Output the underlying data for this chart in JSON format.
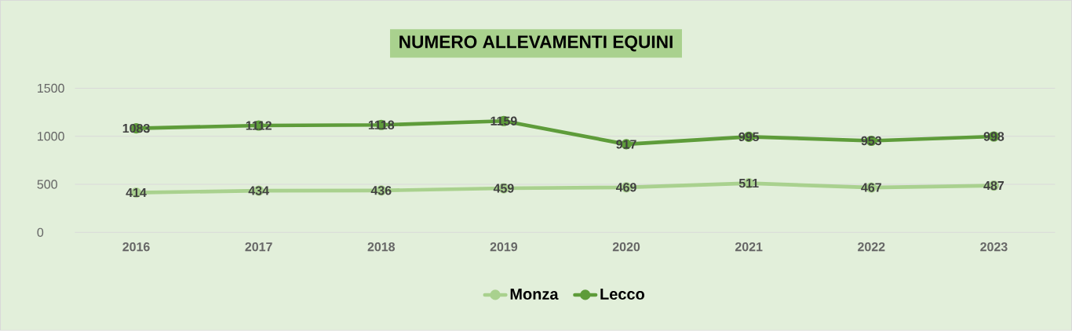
{
  "chart_data": {
    "type": "line",
    "title": "NUMERO ALLEVAMENTI EQUINI",
    "categories": [
      "2016",
      "2017",
      "2018",
      "2019",
      "2020",
      "2021",
      "2022",
      "2023"
    ],
    "series": [
      {
        "name": "Monza",
        "color": "#a9d18e",
        "values": [
          414,
          434,
          436,
          459,
          469,
          511,
          467,
          487
        ]
      },
      {
        "name": "Lecco",
        "color": "#5e9c3a",
        "values": [
          1083,
          1112,
          1118,
          1159,
          917,
          995,
          953,
          998
        ]
      }
    ],
    "ylim": [
      0,
      1500
    ],
    "yticks": [
      0,
      500,
      1000,
      1500
    ],
    "grid": "y",
    "legend": "bottom",
    "marker": "circle",
    "data_labels": true
  }
}
